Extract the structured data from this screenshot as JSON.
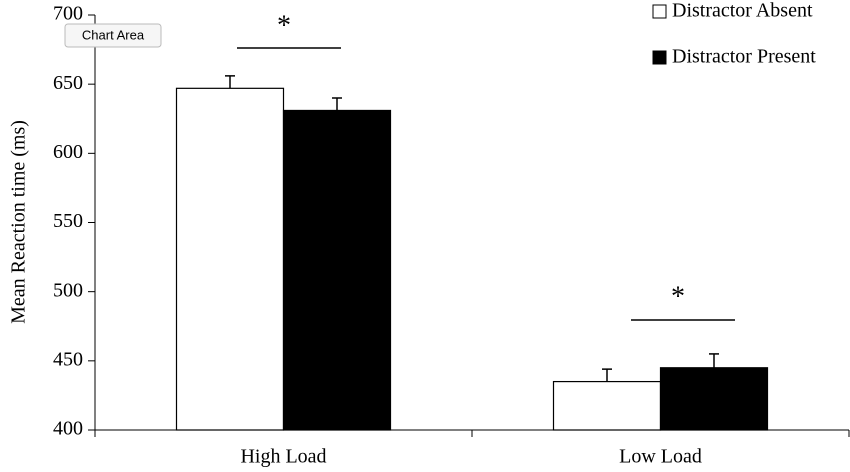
{
  "chart_data": {
    "type": "bar",
    "y_label": "Mean Reaction time (ms)",
    "categories": [
      "High Load",
      "Low Load"
    ],
    "series": [
      {
        "name": "Distractor Absent",
        "color": "#ffffff",
        "values": [
          647,
          435
        ],
        "errors": [
          9,
          9
        ]
      },
      {
        "name": "Distractor Present",
        "color": "#000000",
        "values": [
          631,
          445
        ],
        "errors": [
          9,
          10
        ]
      }
    ],
    "ylim": [
      400,
      700
    ],
    "yticks": [
      400,
      450,
      500,
      550,
      600,
      650,
      700
    ],
    "legend": "top-right",
    "annotations": [
      "*",
      "*"
    ],
    "tooltip": "Chart Area"
  }
}
